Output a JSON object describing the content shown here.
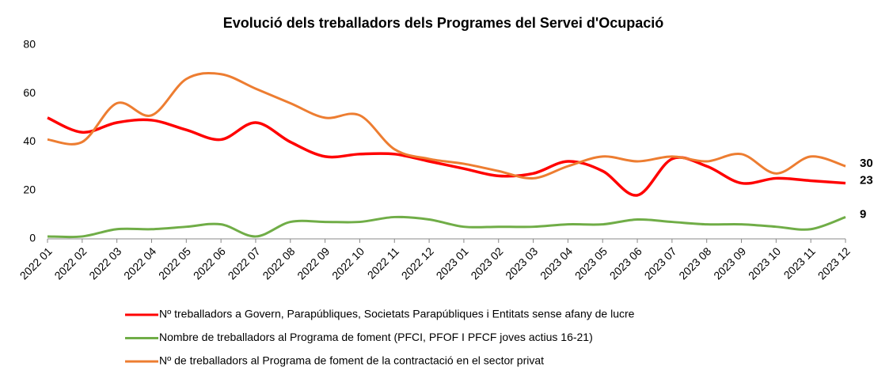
{
  "chart_data": {
    "type": "line",
    "title": "Evolució dels treballadors dels Programes del Servei d'Ocupació",
    "categories": [
      "2022 01",
      "2022 02",
      "2022 03",
      "2022 04",
      "2022 05",
      "2022 06",
      "2022 07",
      "2022 08",
      "2022 09",
      "2022 10",
      "2022 11",
      "2022 12",
      "2023 01",
      "2023 02",
      "2023 03",
      "2023 04",
      "2023 05",
      "2023 06",
      "2023 07",
      "2023 08",
      "2023 09",
      "2023 10",
      "2023 11",
      "2023 12"
    ],
    "series": [
      {
        "name": "Nº treballadors a Govern, Parapúbliques, Societats Parapúbliques i Entitats sense afany de lucre",
        "color": "#ff0000",
        "values": [
          50,
          44,
          48,
          49,
          45,
          41,
          48,
          40,
          34,
          35,
          35,
          32,
          29,
          26,
          27,
          32,
          28,
          18,
          33,
          30,
          23,
          25,
          24,
          23
        ]
      },
      {
        "name": "Nombre de treballadors al Programa de foment (PFCI, PFOF I PFCF joves actius 16-21)",
        "color": "#70ad47",
        "values": [
          1,
          1,
          4,
          4,
          5,
          6,
          1,
          7,
          7,
          7,
          9,
          8,
          5,
          5,
          5,
          6,
          6,
          8,
          7,
          6,
          6,
          5,
          4,
          9
        ]
      },
      {
        "name": "Nº de treballadors al Programa de foment de la contractació en el sector privat",
        "color": "#ed7d31",
        "values": [
          41,
          40,
          56,
          51,
          66,
          68,
          62,
          56,
          50,
          51,
          37,
          33,
          31,
          28,
          25,
          30,
          34,
          32,
          34,
          32,
          35,
          27,
          34,
          30
        ]
      }
    ],
    "ylim": [
      0,
      80
    ],
    "yticks": [
      0,
      20,
      40,
      60,
      80
    ],
    "grid": false
  }
}
